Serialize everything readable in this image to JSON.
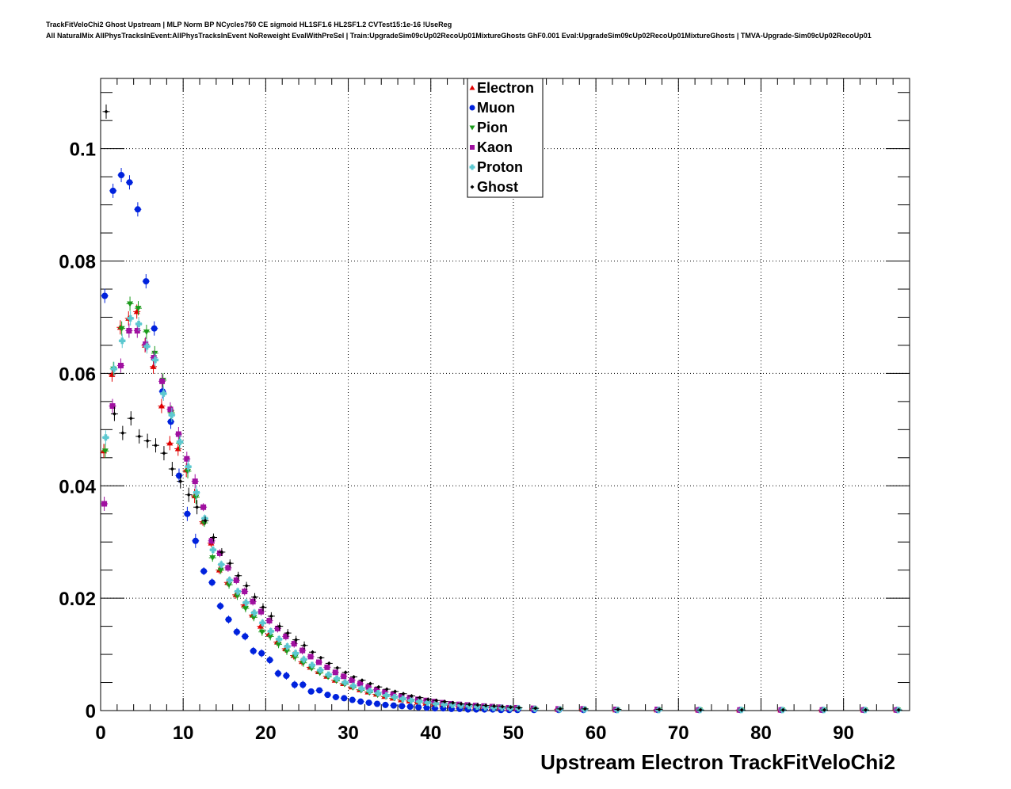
{
  "header": {
    "title_line1": "TrackFitVeloChi2 Ghost Upstream | MLP Norm BP NCycles750 CE sigmoid HL1SF1.6 HL2SF1.2 CVTest15:1e-16 !UseReg",
    "title_line2": "All NaturalMix AllPhysTracksInEvent:AllPhysTracksInEvent NoReweight EvalWithPreSel | Train:UpgradeSim09cUp02RecoUp01MixtureGhosts GhF0.001 Eval:UpgradeSim09cUp02RecoUp01MixtureGhosts | TMVA-Upgrade-Sim09cUp02RecoUp01"
  },
  "chart_data": {
    "type": "scatter",
    "title": "",
    "xlabel": "Upstream Electron TrackFitVeloChi2",
    "ylabel": "",
    "xlim": [
      0,
      98
    ],
    "ylim": [
      0,
      0.1125
    ],
    "grid": true,
    "legend_position": "top-center",
    "x_ticks": [
      0,
      10,
      20,
      30,
      40,
      50,
      60,
      70,
      80,
      90
    ],
    "x_tick_labels": [
      "0",
      "10",
      "20",
      "30",
      "40",
      "50",
      "60",
      "70",
      "80",
      "90"
    ],
    "y_ticks": [
      0,
      0.02,
      0.04,
      0.06,
      0.08,
      0.1
    ],
    "y_tick_labels": [
      "0",
      "0.02",
      "0.04",
      "0.06",
      "0.08",
      "0.1"
    ],
    "x": [
      0.5,
      1.5,
      2.5,
      3.5,
      4.5,
      5.5,
      6.5,
      7.5,
      8.5,
      9.5,
      10.5,
      11.5,
      12.5,
      13.5,
      14.5,
      15.5,
      16.5,
      17.5,
      18.5,
      19.5,
      20.5,
      21.5,
      22.5,
      23.5,
      24.5,
      25.5,
      26.5,
      27.5,
      28.5,
      29.5,
      30.5,
      31.5,
      32.5,
      33.5,
      34.5,
      35.5,
      36.5,
      37.5,
      38.5,
      39.5,
      40.5,
      41.5,
      42.5,
      43.5,
      44.5,
      45.5,
      46.5,
      47.5,
      48.5,
      49.5,
      50.5,
      52.5,
      55.5,
      58.5,
      62.5,
      67.5,
      72.5,
      77.5,
      82.5,
      87.5,
      92.5,
      96.5
    ],
    "series": [
      {
        "name": "Electron",
        "marker": "triangle-up",
        "color": "#e00000",
        "values": [
          0.0462,
          0.0598,
          0.0682,
          0.0698,
          0.071,
          0.065,
          0.0612,
          0.0542,
          0.0476,
          0.0466,
          0.0428,
          0.0382,
          0.0336,
          0.0298,
          0.025,
          0.0228,
          0.0206,
          0.0188,
          0.017,
          0.015,
          0.0136,
          0.0122,
          0.011,
          0.0098,
          0.0087,
          0.0077,
          0.0069,
          0.0061,
          0.0054,
          0.0048,
          0.0042,
          0.0037,
          0.0033,
          0.0029,
          0.0025,
          0.0022,
          0.0019,
          0.0017,
          0.0015,
          0.0013,
          0.0011,
          0.001,
          0.0009,
          0.0008,
          0.0007,
          0.0006,
          0.0005,
          0.0005,
          0.0004,
          0.0004,
          0.0003,
          0.0003,
          0.0002,
          0.0002,
          0.0001,
          0.0001,
          0.0001,
          0.0001,
          0.0001,
          0.0001,
          0.0001,
          0.0001
        ]
      },
      {
        "name": "Muon",
        "marker": "circle",
        "color": "#0022dd",
        "values": [
          0.0738,
          0.0925,
          0.0953,
          0.094,
          0.0892,
          0.0764,
          0.068,
          0.0568,
          0.0514,
          0.0418,
          0.035,
          0.0302,
          0.0248,
          0.0228,
          0.0186,
          0.0162,
          0.014,
          0.0132,
          0.0106,
          0.0102,
          0.009,
          0.0066,
          0.0062,
          0.0046,
          0.0046,
          0.0034,
          0.0036,
          0.0028,
          0.0024,
          0.0022,
          0.0019,
          0.0016,
          0.0014,
          0.0012,
          0.001,
          0.0009,
          0.0008,
          0.0007,
          0.0006,
          0.0005,
          0.0004,
          0.0004,
          0.0003,
          0.0003,
          0.0002,
          0.0002,
          0.0002,
          0.0002,
          0.0001,
          0.0001,
          0.0001,
          0.0001,
          0.0001,
          0.0001,
          0.0001,
          0.0001,
          0.0001,
          0.0001,
          0.0001,
          0.0001,
          0.0001,
          0.0001
        ]
      },
      {
        "name": "Pion",
        "marker": "triangle-down",
        "color": "#1a9a1a",
        "values": [
          0.0462,
          0.0608,
          0.068,
          0.0724,
          0.0716,
          0.0674,
          0.0636,
          0.0588,
          0.053,
          0.0476,
          0.0426,
          0.038,
          0.0334,
          0.0272,
          0.025,
          0.0224,
          0.0204,
          0.0182,
          0.0166,
          0.014,
          0.0132,
          0.0118,
          0.0106,
          0.0095,
          0.0085,
          0.0075,
          0.0067,
          0.006,
          0.0053,
          0.0047,
          0.0041,
          0.0036,
          0.0032,
          0.0028,
          0.0025,
          0.0022,
          0.0019,
          0.0017,
          0.0015,
          0.0013,
          0.0011,
          0.001,
          0.0009,
          0.0008,
          0.0007,
          0.0006,
          0.0005,
          0.0005,
          0.0004,
          0.0004,
          0.0003,
          0.0003,
          0.0002,
          0.0002,
          0.0001,
          0.0001,
          0.0001,
          0.0001,
          0.0001,
          0.0001,
          0.0001,
          0.0001
        ]
      },
      {
        "name": "Kaon",
        "marker": "square",
        "color": "#a010a0",
        "values": [
          0.0368,
          0.0542,
          0.0614,
          0.0676,
          0.0676,
          0.0652,
          0.0628,
          0.0586,
          0.0536,
          0.0492,
          0.0448,
          0.0408,
          0.0362,
          0.0302,
          0.028,
          0.0254,
          0.0232,
          0.0212,
          0.0194,
          0.0176,
          0.016,
          0.0146,
          0.0132,
          0.0119,
          0.0107,
          0.0096,
          0.0086,
          0.0077,
          0.0068,
          0.0061,
          0.0054,
          0.0048,
          0.0042,
          0.0037,
          0.0033,
          0.0029,
          0.0026,
          0.0023,
          0.002,
          0.0018,
          0.0016,
          0.0014,
          0.0012,
          0.0011,
          0.001,
          0.0009,
          0.0008,
          0.0007,
          0.0006,
          0.0005,
          0.0005,
          0.0004,
          0.0003,
          0.0003,
          0.0002,
          0.0002,
          0.0001,
          0.0001,
          0.0001,
          0.0001,
          0.0001,
          0.0001
        ]
      },
      {
        "name": "Proton",
        "marker": "cross",
        "color": "#5cc8d0",
        "values": [
          0.0486,
          0.0608,
          0.0658,
          0.0698,
          0.0688,
          0.0648,
          0.0624,
          0.0564,
          0.0526,
          0.0478,
          0.0434,
          0.0388,
          0.0342,
          0.0286,
          0.026,
          0.0232,
          0.0212,
          0.0192,
          0.0174,
          0.0156,
          0.0141,
          0.0127,
          0.0114,
          0.0102,
          0.0091,
          0.0081,
          0.0072,
          0.0064,
          0.0057,
          0.005,
          0.0044,
          0.0039,
          0.0035,
          0.0031,
          0.0027,
          0.0024,
          0.0021,
          0.0018,
          0.0016,
          0.0014,
          0.0012,
          0.0011,
          0.001,
          0.0009,
          0.0008,
          0.0007,
          0.0006,
          0.0005,
          0.0005,
          0.0004,
          0.0004,
          0.0003,
          0.0002,
          0.0002,
          0.0001,
          0.0001,
          0.0001,
          0.0001,
          0.0001,
          0.0001,
          0.0001,
          0.0001
        ]
      },
      {
        "name": "Ghost",
        "marker": "diamond",
        "color": "#000000",
        "values": [
          0.1066,
          0.0528,
          0.0494,
          0.052,
          0.0488,
          0.048,
          0.0472,
          0.0458,
          0.043,
          0.0408,
          0.0384,
          0.0362,
          0.0338,
          0.0308,
          0.0282,
          0.0262,
          0.024,
          0.0222,
          0.0202,
          0.0184,
          0.0168,
          0.015,
          0.0138,
          0.0126,
          0.0116,
          0.0104,
          0.0094,
          0.0084,
          0.0076,
          0.0068,
          0.006,
          0.0054,
          0.0048,
          0.0042,
          0.0038,
          0.0034,
          0.003,
          0.0026,
          0.0023,
          0.002,
          0.0018,
          0.0016,
          0.0014,
          0.0012,
          0.0011,
          0.001,
          0.0009,
          0.0008,
          0.0007,
          0.0006,
          0.0005,
          0.0004,
          0.0003,
          0.0003,
          0.0002,
          0.0002,
          0.0001,
          0.0001,
          0.0001,
          0.0001,
          0.0001,
          0.0001
        ]
      }
    ]
  }
}
